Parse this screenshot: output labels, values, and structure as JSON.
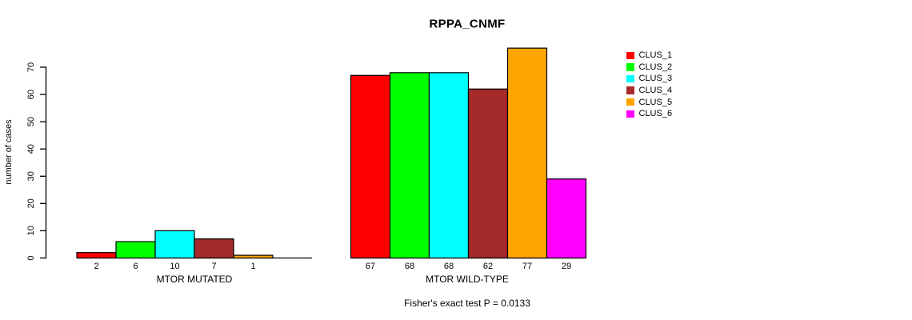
{
  "figure": {
    "background": "#ffffff",
    "axis_color": "#000000",
    "text_color": "#000000"
  },
  "chart_data": {
    "type": "bar",
    "title": "RPPA_CNMF",
    "xlabel": "",
    "ylabel": "number of cases",
    "ylim": [
      0,
      70
    ],
    "yticks": [
      0,
      10,
      20,
      30,
      40,
      50,
      60,
      70
    ],
    "grid": false,
    "categories": [
      "MTOR MUTATED",
      "MTOR WILD-TYPE"
    ],
    "series": [
      {
        "name": "CLUS_1",
        "color": "#ff0000",
        "values": [
          2,
          67
        ]
      },
      {
        "name": "CLUS_2",
        "color": "#00ff00",
        "values": [
          6,
          68
        ]
      },
      {
        "name": "CLUS_3",
        "color": "#00ffff",
        "values": [
          10,
          68
        ]
      },
      {
        "name": "CLUS_4",
        "color": "#a52a2a",
        "values": [
          7,
          62
        ]
      },
      {
        "name": "CLUS_5",
        "color": "#ffa500",
        "values": [
          1,
          77
        ]
      },
      {
        "name": "CLUS_6",
        "color": "#ff00ff",
        "values": [
          0,
          29
        ]
      }
    ],
    "bar_labels": [
      [
        "2",
        "6",
        "10",
        "7",
        "1",
        ""
      ],
      [
        "67",
        "68",
        "68",
        "62",
        "77",
        "29"
      ]
    ],
    "legend": {
      "position": "right",
      "entries": [
        "CLUS_1",
        "CLUS_2",
        "CLUS_3",
        "CLUS_4",
        "CLUS_5",
        "CLUS_6"
      ]
    },
    "annotation": "Fisher's exact test P = 0.0133"
  }
}
